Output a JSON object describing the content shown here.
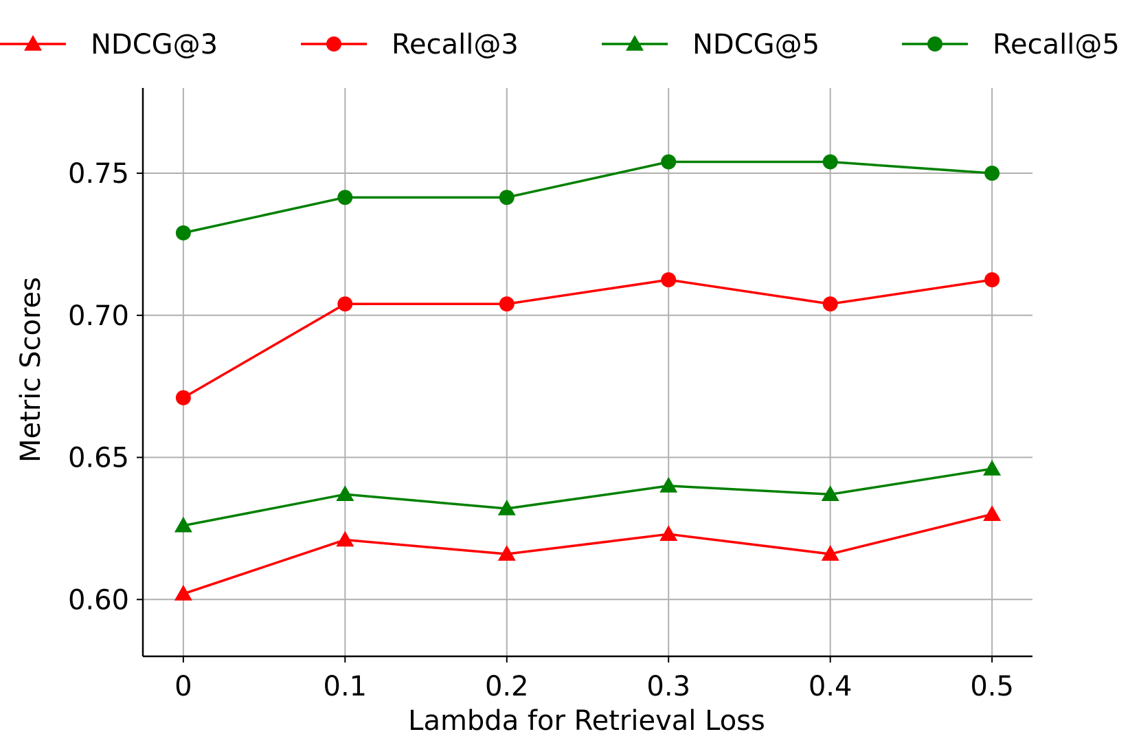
{
  "chart_data": {
    "type": "line",
    "xlabel": "Lambda for Retrieval Loss",
    "ylabel": "Metric Scores",
    "x": [
      0,
      0.1,
      0.2,
      0.3,
      0.4,
      0.5
    ],
    "x_tick_labels": [
      "0",
      "0.1",
      "0.2",
      "0.3",
      "0.4",
      "0.5"
    ],
    "y_ticks": [
      0.6,
      0.65,
      0.7,
      0.75
    ],
    "y_tick_labels": [
      "0.60",
      "0.65",
      "0.70",
      "0.75"
    ],
    "xlim": [
      -0.025,
      0.525
    ],
    "ylim": [
      0.58,
      0.78
    ],
    "grid": true,
    "legend_position": "top",
    "series": [
      {
        "name": "NDCG@3",
        "color": "#ff0000",
        "marker": "triangle",
        "values": [
          0.602,
          0.621,
          0.616,
          0.623,
          0.616,
          0.63
        ]
      },
      {
        "name": "Recall@3",
        "color": "#ff0000",
        "marker": "circle",
        "values": [
          0.671,
          0.704,
          0.704,
          0.7125,
          0.704,
          0.7125
        ]
      },
      {
        "name": "NDCG@5",
        "color": "#008000",
        "marker": "triangle",
        "values": [
          0.626,
          0.637,
          0.632,
          0.64,
          0.637,
          0.646
        ]
      },
      {
        "name": "Recall@5",
        "color": "#008000",
        "marker": "circle",
        "values": [
          0.729,
          0.7415,
          0.7415,
          0.754,
          0.754,
          0.75
        ]
      }
    ]
  }
}
